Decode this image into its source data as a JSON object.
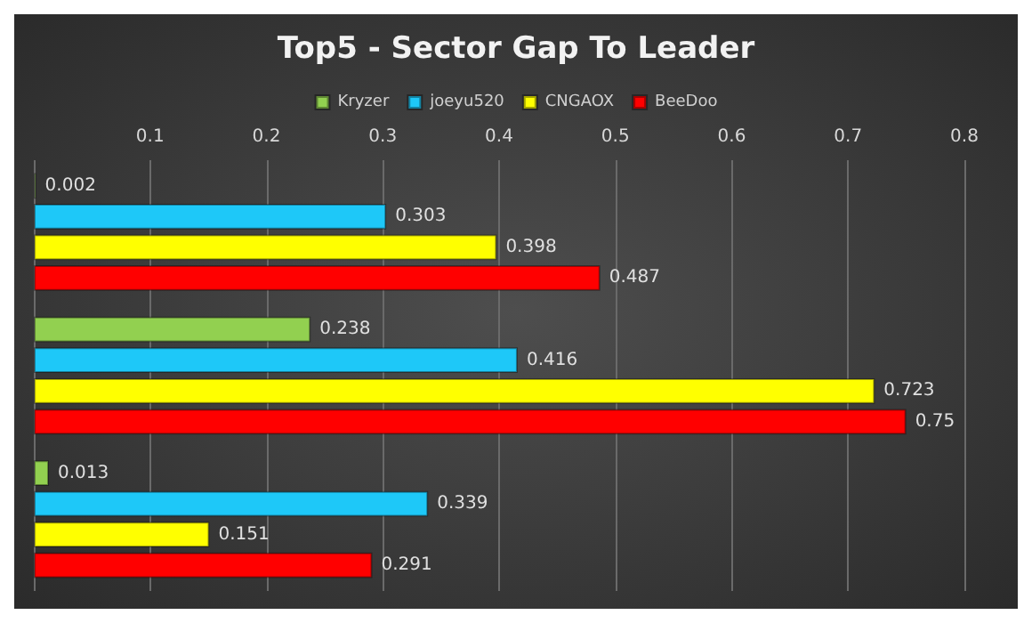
{
  "chart_data": {
    "type": "bar",
    "orientation": "horizontal",
    "title": "Top5 - Sector Gap To Leader",
    "categories": [
      null,
      null,
      null
    ],
    "series": [
      {
        "name": "Kryzer",
        "color": "#92d050",
        "values": [
          0.002,
          0.238,
          0.013
        ]
      },
      {
        "name": "joeyu520",
        "color": "#1ec8f8",
        "values": [
          0.303,
          0.416,
          0.339
        ]
      },
      {
        "name": "CNGAOX",
        "color": "#ffff00",
        "values": [
          0.398,
          0.723,
          0.151
        ]
      },
      {
        "name": "BeeDoo",
        "color": "#ff0000",
        "values": [
          0.487,
          0.75,
          0.291
        ]
      }
    ],
    "xlim": [
      0,
      0.8
    ],
    "xticks": [
      {
        "value": 0,
        "label": null
      },
      0.1,
      0.2,
      0.3,
      0.4,
      0.5,
      0.6,
      0.7,
      0.8
    ],
    "grid": "x",
    "legend": "top",
    "data_labels": true
  }
}
